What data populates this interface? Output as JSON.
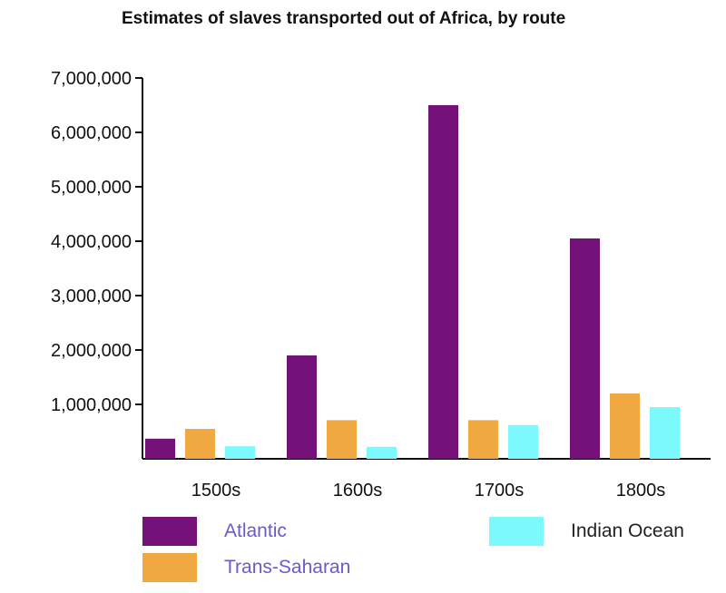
{
  "chart_data": {
    "type": "bar",
    "title": "Estimates of slaves transported out of Africa, by route",
    "xlabel": "",
    "ylabel": "",
    "categories": [
      "1500s",
      "1600s",
      "1700s",
      "1800s"
    ],
    "series": [
      {
        "name": "Atlantic",
        "color": "#74127a",
        "values": [
          370000,
          1900000,
          6500000,
          4050000
        ]
      },
      {
        "name": "Trans-Saharan",
        "color": "#f0a840",
        "values": [
          550000,
          710000,
          710000,
          1200000
        ]
      },
      {
        "name": "Indian Ocean",
        "color": "#7cf9fc",
        "values": [
          230000,
          220000,
          620000,
          950000
        ]
      }
    ],
    "ylim": [
      0,
      7000000
    ],
    "yticks": [
      1000000,
      2000000,
      3000000,
      4000000,
      5000000,
      6000000,
      7000000
    ],
    "ytick_labels": [
      "1,000,000",
      "2,000,000",
      "3,000,000",
      "4,000,000",
      "5,000,000",
      "6,000,000",
      "7,000,000"
    ],
    "grid": false,
    "legend_position": "bottom"
  },
  "legend_colors": {
    "atlantic_label": "#6a5acd",
    "trans_saharan_label": "#6a5acd",
    "indian_ocean_label": "#222222"
  }
}
